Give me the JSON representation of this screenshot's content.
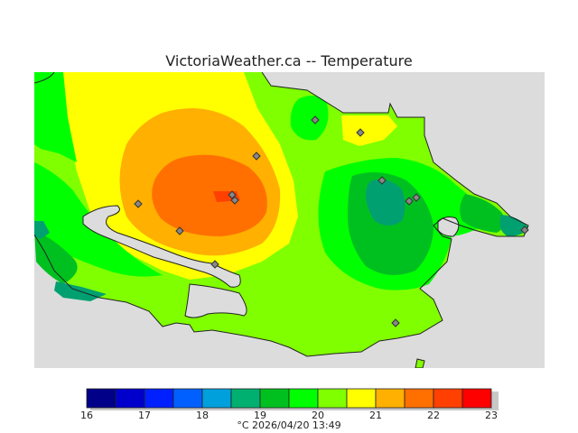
{
  "title": "VictoriaWeather.ca  --  Temperature",
  "colors": {
    "background": "#ffffff",
    "land_outside": "#dcdcdc",
    "coastline": "#222222",
    "marker": "#888888"
  },
  "legend": {
    "colors": [
      "#000088",
      "#0000cc",
      "#0020ff",
      "#0060ff",
      "#00a0dd",
      "#00b070",
      "#00c020",
      "#00ff00",
      "#80ff00",
      "#ffff00",
      "#ffb000",
      "#ff7000",
      "#ff4000",
      "#ff0000"
    ],
    "ticks": [
      "16",
      "17",
      "18",
      "19",
      "20",
      "21",
      "22",
      "23"
    ],
    "caption": "°C  2026/04/20 13:49"
  }
}
